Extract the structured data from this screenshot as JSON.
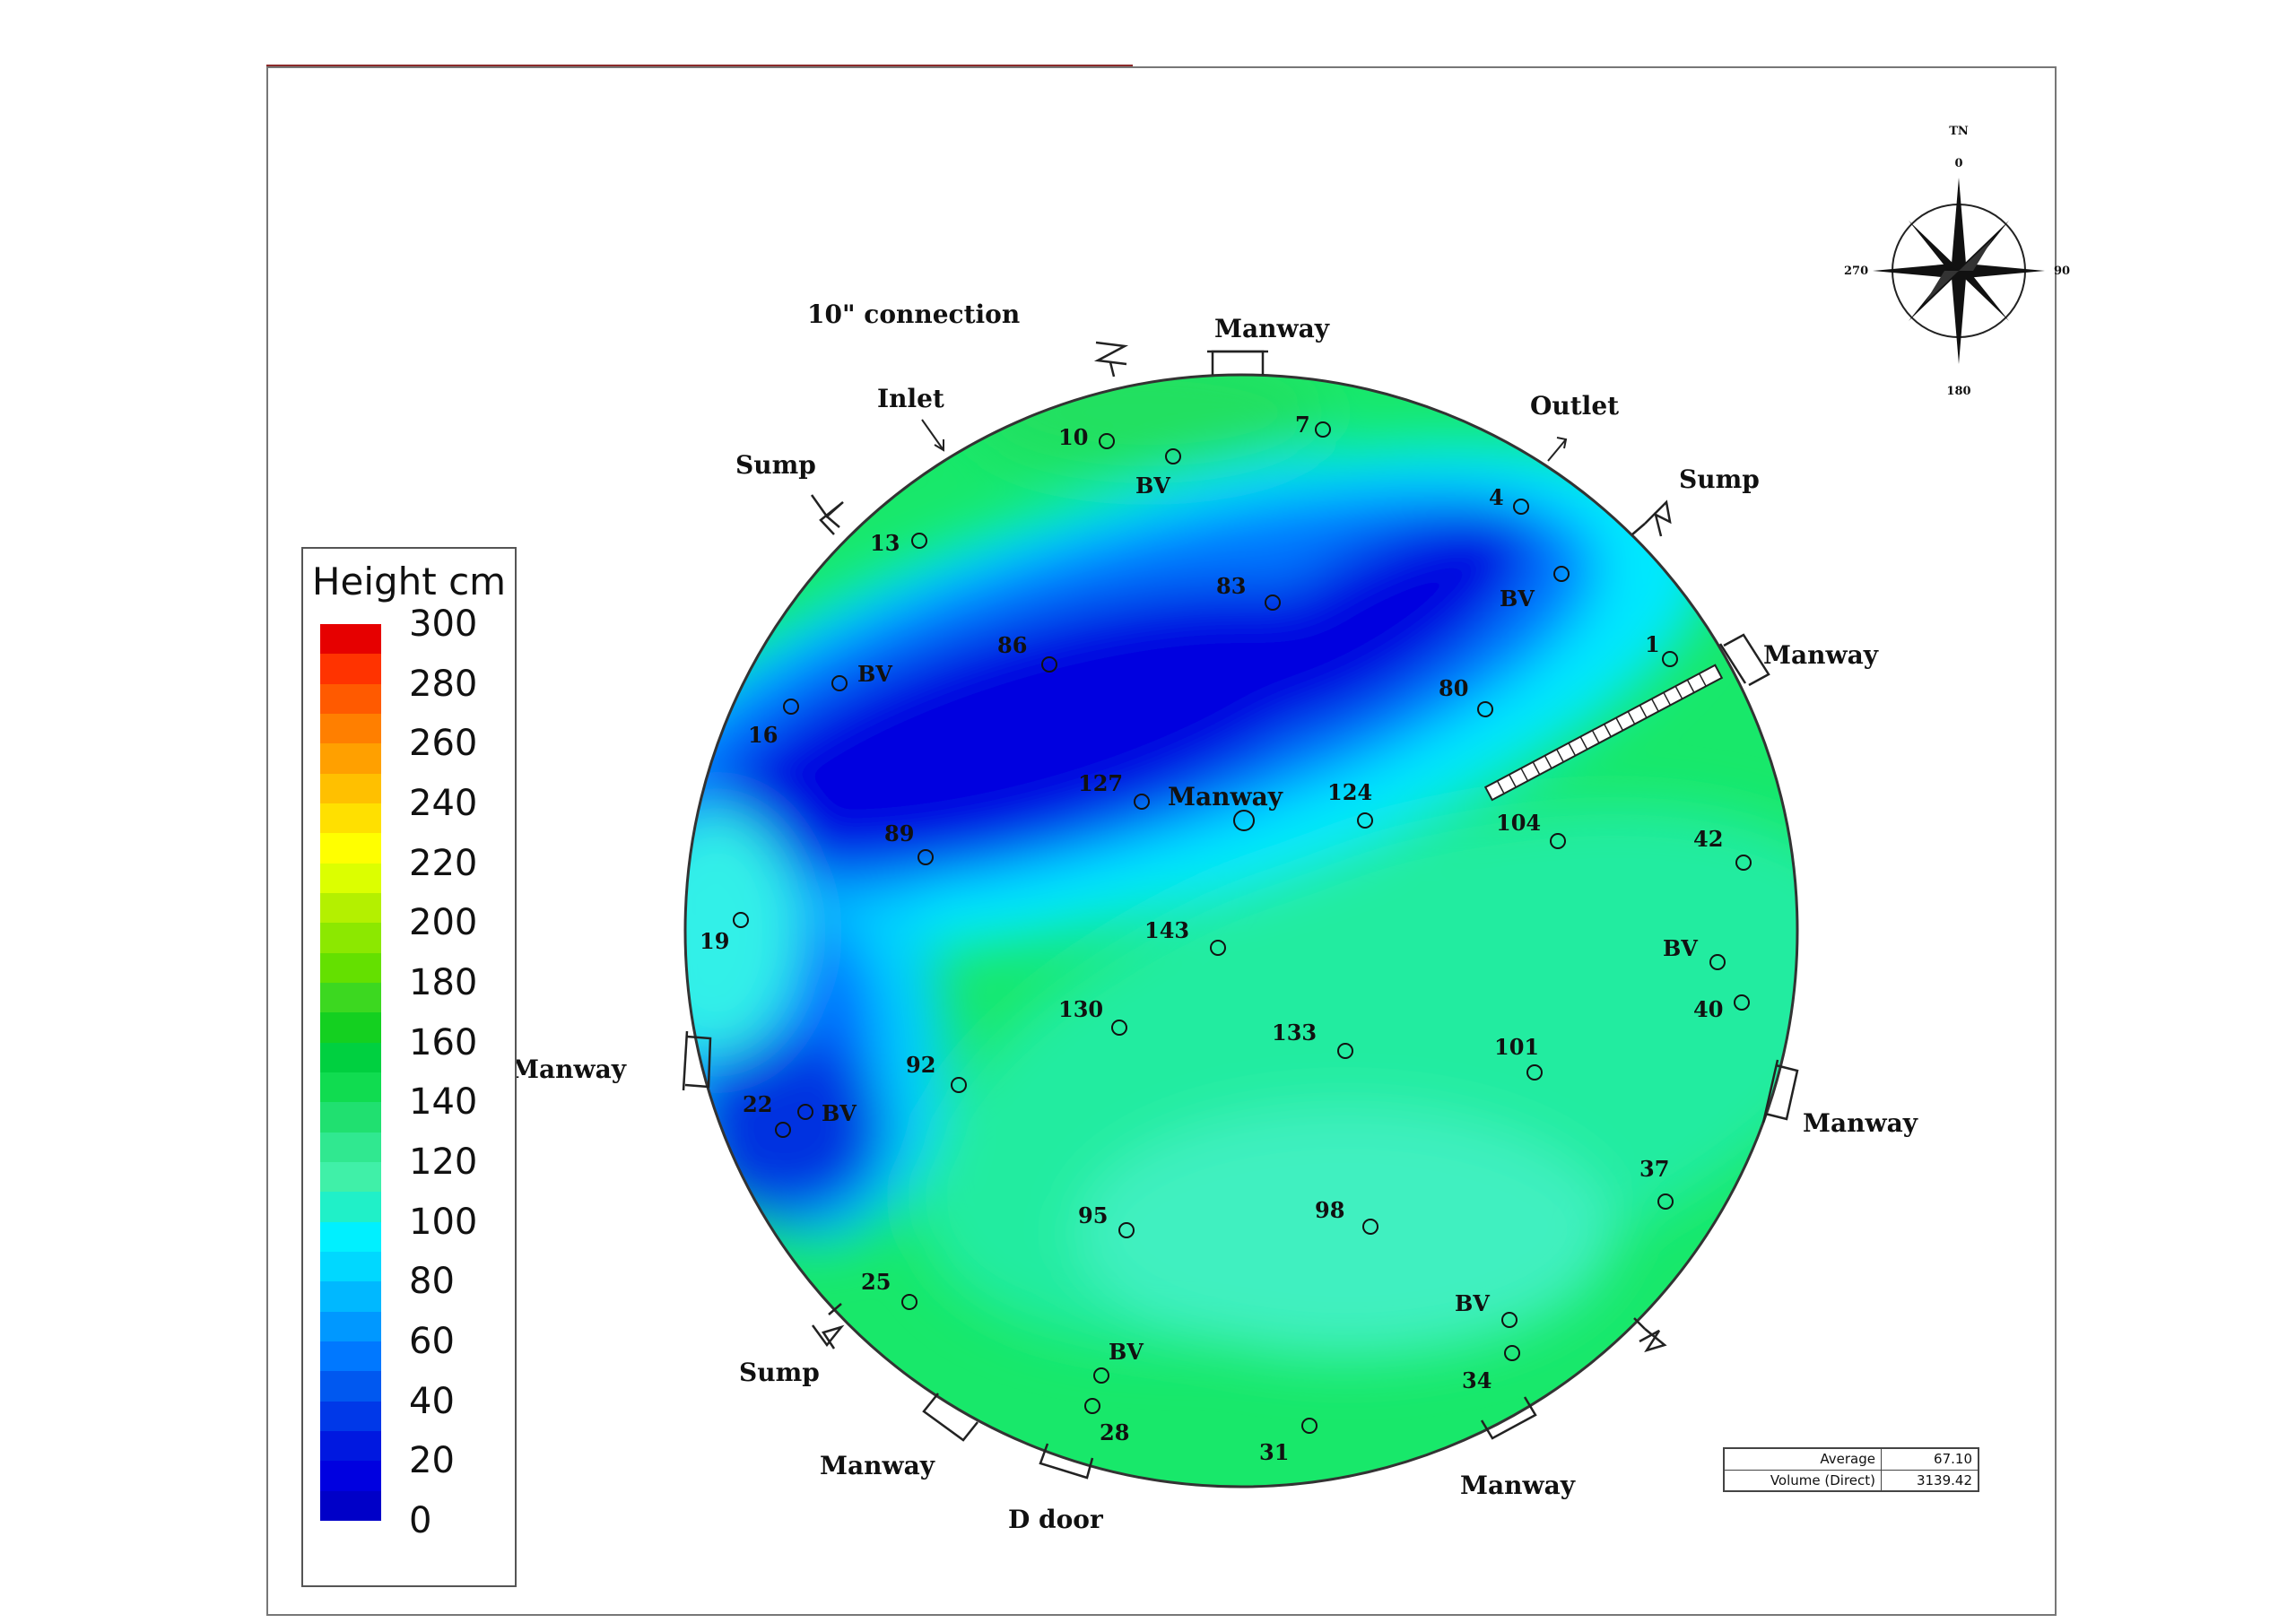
{
  "legend": {
    "title": "Height cm",
    "ticks": [
      "300",
      "280",
      "260",
      "240",
      "220",
      "200",
      "180",
      "160",
      "140",
      "120",
      "100",
      "80",
      "60",
      "40",
      "20",
      "0"
    ],
    "palette": [
      "#e60000",
      "#ff3300",
      "#ff5a00",
      "#ff7f00",
      "#ffa000",
      "#ffc000",
      "#ffe000",
      "#ffff00",
      "#dcff00",
      "#b4f000",
      "#8ce800",
      "#64e000",
      "#3cd820",
      "#14d020",
      "#00d040",
      "#10dc50",
      "#20e070",
      "#30e890",
      "#40f0a8",
      "#20f0c8",
      "#00f0ff",
      "#00d8ff",
      "#00b8ff",
      "#0098ff",
      "#0078ff",
      "#0058f0",
      "#0038e8",
      "#0018e0",
      "#0000e0",
      "#0000c8"
    ]
  },
  "stats": [
    {
      "label": "Average",
      "value": "67.10"
    },
    {
      "label": "Volume (Direct)",
      "value": "3139.42"
    }
  ],
  "compass": {
    "north_label": "TN",
    "n": "0",
    "e": "90",
    "s": "180",
    "w": "270"
  },
  "tank_fittings": {
    "ten_inch": "10\" connection",
    "inlet": "Inlet",
    "outlet": "Outlet",
    "sump_nw": "Sump",
    "sump_ne": "Sump",
    "sump_sw": "Sump",
    "manway_n": "Manway",
    "manway_e_upper": "Manway",
    "manway_e_lower": "Manway",
    "manway_w": "Manway",
    "manway_center": "Manway",
    "manway_sw": "Manway",
    "manway_se": "Manway",
    "d_door": "D door"
  },
  "measurement_points": [
    "1",
    "4",
    "7",
    "10",
    "13",
    "16",
    "19",
    "22",
    "25",
    "28",
    "31",
    "34",
    "37",
    "40",
    "42",
    "80",
    "83",
    "86",
    "89",
    "92",
    "95",
    "98",
    "101",
    "104",
    "124",
    "127",
    "130",
    "133",
    "143"
  ],
  "bv_label": "BV"
}
